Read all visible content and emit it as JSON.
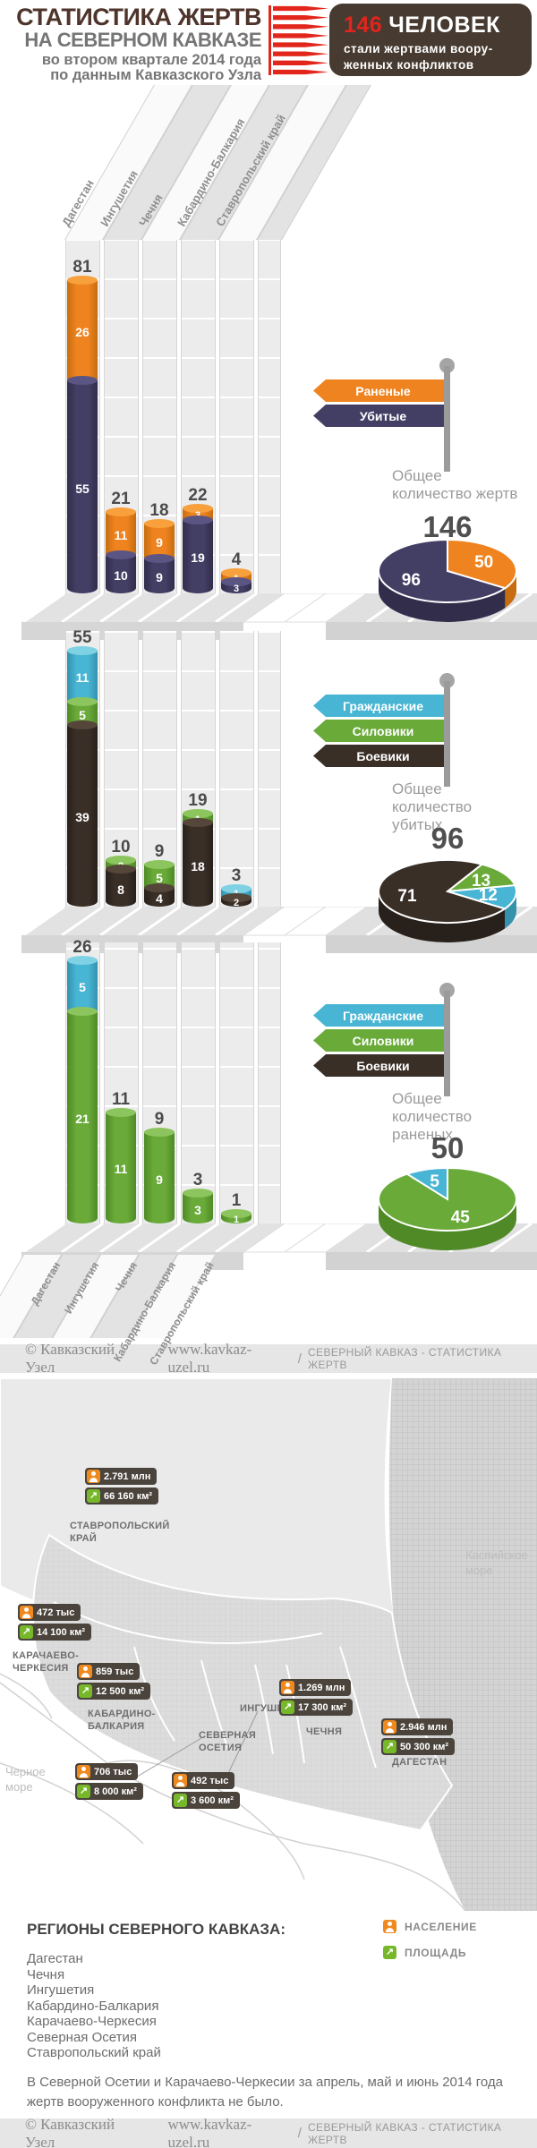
{
  "header": {
    "title_line1": "СТАТИСТИКА ЖЕРТВ",
    "title_line2": "НА СЕВЕРНОМ КАВКАЗЕ",
    "subtitle_line1": "во втором квартале 2014 года",
    "subtitle_line2": "по данным Кавказского Узла",
    "count": "146",
    "count_label": "ЧЕЛОВЕК",
    "count_sub1": "стали жертвами воору-",
    "count_sub2": "женных  конфликтов"
  },
  "colors": {
    "wounded_orange": "#ee831f",
    "killed_navy": "#433e64",
    "civilians_cyan": "#47b5d3",
    "forces_green": "#69aa39",
    "militants_dark": "#3a2f27",
    "accent_red": "#e2251c",
    "header_box_brown": "#473a30"
  },
  "chart_data": [
    {
      "type": "bar",
      "stacked": true,
      "categories": [
        "Дагестан",
        "Ингушетия",
        "Чечня",
        "Кабардино-Балкария",
        "Ставропольский край"
      ],
      "series": [
        {
          "name": "Раненые",
          "color": "#ee831f",
          "values": [
            26,
            11,
            9,
            3,
            1
          ]
        },
        {
          "name": "Убитые",
          "color": "#433e64",
          "values": [
            55,
            10,
            9,
            19,
            3
          ]
        }
      ],
      "totals": [
        81,
        21,
        18,
        22,
        4
      ],
      "summary_label": "Общее количество жертв",
      "summary_total": "146",
      "pie": {
        "type": "pie",
        "start_angle": -90,
        "slices": [
          {
            "name": "Раненые",
            "value": 50,
            "color": "#ee831f"
          },
          {
            "name": "Убитые",
            "value": 96,
            "color": "#433e64"
          }
        ]
      }
    },
    {
      "type": "bar",
      "stacked": true,
      "categories": [
        "Дагестан",
        "Ингушетия",
        "Чечня",
        "Кабардино-Балкария",
        "Ставропольский край"
      ],
      "series": [
        {
          "name": "Гражданские",
          "color": "#47b5d3",
          "values": [
            11,
            0,
            0,
            0,
            1
          ]
        },
        {
          "name": "Силовики",
          "color": "#69aa39",
          "values": [
            5,
            2,
            5,
            1,
            0
          ]
        },
        {
          "name": "Боевики",
          "color": "#3a2f27",
          "values": [
            39,
            8,
            4,
            18,
            2
          ]
        }
      ],
      "totals": [
        55,
        10,
        9,
        19,
        3
      ],
      "summary_label": "Общее количество убитых",
      "summary_total": "96",
      "pie": {
        "type": "pie",
        "start_angle": -60,
        "slices": [
          {
            "name": "Силовики",
            "value": 13,
            "color": "#69aa39"
          },
          {
            "name": "Гражданские",
            "value": 12,
            "color": "#47b5d3"
          },
          {
            "name": "Боевики",
            "value": 71,
            "color": "#3a2f27"
          }
        ]
      }
    },
    {
      "type": "bar",
      "stacked": true,
      "categories": [
        "Дагестан",
        "Ингушетия",
        "Чечня",
        "Кабардино-Балкария",
        "Ставропольский край"
      ],
      "series": [
        {
          "name": "Гражданские",
          "color": "#47b5d3",
          "values": [
            5,
            0,
            0,
            0,
            0
          ]
        },
        {
          "name": "Силовики",
          "color": "#69aa39",
          "values": [
            21,
            11,
            9,
            3,
            1
          ]
        },
        {
          "name": "Боевики",
          "color": "#3a2f27",
          "values": [
            0,
            0,
            0,
            0,
            0
          ]
        }
      ],
      "totals": [
        26,
        11,
        9,
        3,
        1
      ],
      "summary_label": "Общее количество раненых",
      "summary_total": "50",
      "pie": {
        "type": "pie",
        "start_angle": -126,
        "slices": [
          {
            "name": "Гражданские",
            "value": 5,
            "color": "#47b5d3"
          },
          {
            "name": "Силовики",
            "value": 45,
            "color": "#69aa39"
          }
        ]
      }
    }
  ],
  "map": {
    "sea_labels": [
      {
        "text": "Каспийское море"
      },
      {
        "text": "Черное море"
      }
    ],
    "regions": [
      {
        "name": "СТАВРОПОЛЬСКИЙ КРАЙ",
        "population": "2.791 млн",
        "area": "66 160 км²"
      },
      {
        "name": "КАРАЧАЕВО-ЧЕРКЕСИЯ",
        "population": "472 тыс",
        "area": "14 100 км²"
      },
      {
        "name": "КАБАРДИНО-БАЛКАРИЯ",
        "population": "859 тыс",
        "area": "12 500 км²"
      },
      {
        "name": "СЕВЕРНАЯ ОСЕТИЯ",
        "population": "706 тыс",
        "area": "8 000 км²"
      },
      {
        "name": "ИНГУШЕТИЯ",
        "population": "492 тыс",
        "area": "3 600 км²"
      },
      {
        "name": "ЧЕЧНЯ",
        "population": "1.269 млн",
        "area": "17 300 км²"
      },
      {
        "name": "ДАГЕСТАН",
        "population": "2.946 млн",
        "area": "50 300 км²"
      }
    ]
  },
  "regions_block": {
    "title": "РЕГИОНЫ СЕВЕРНОГО КАВКАЗА:",
    "items": [
      "Дагестан",
      "Чечня",
      "Ингушетия",
      "Кабардино-Балкария",
      "Карачаево-Черкесия",
      "Северная Осетия",
      "Ставропольский край"
    ],
    "legend_population": "НАСЕЛЕНИЕ",
    "legend_area": "ПЛОЩАДЬ",
    "note": "В Северной Осетии и Карачаево-Черкесии за апрель, май и июнь 2014 года жертв вооруженного конфликта не было."
  },
  "footer": {
    "copyright": "© Кавказский Узел",
    "site": "www.kavkaz-uzel.ru",
    "separator": "/",
    "section": "СЕВЕРНЫЙ КАВКАЗ - СТАТИСТИКА ЖЕРТВ"
  }
}
